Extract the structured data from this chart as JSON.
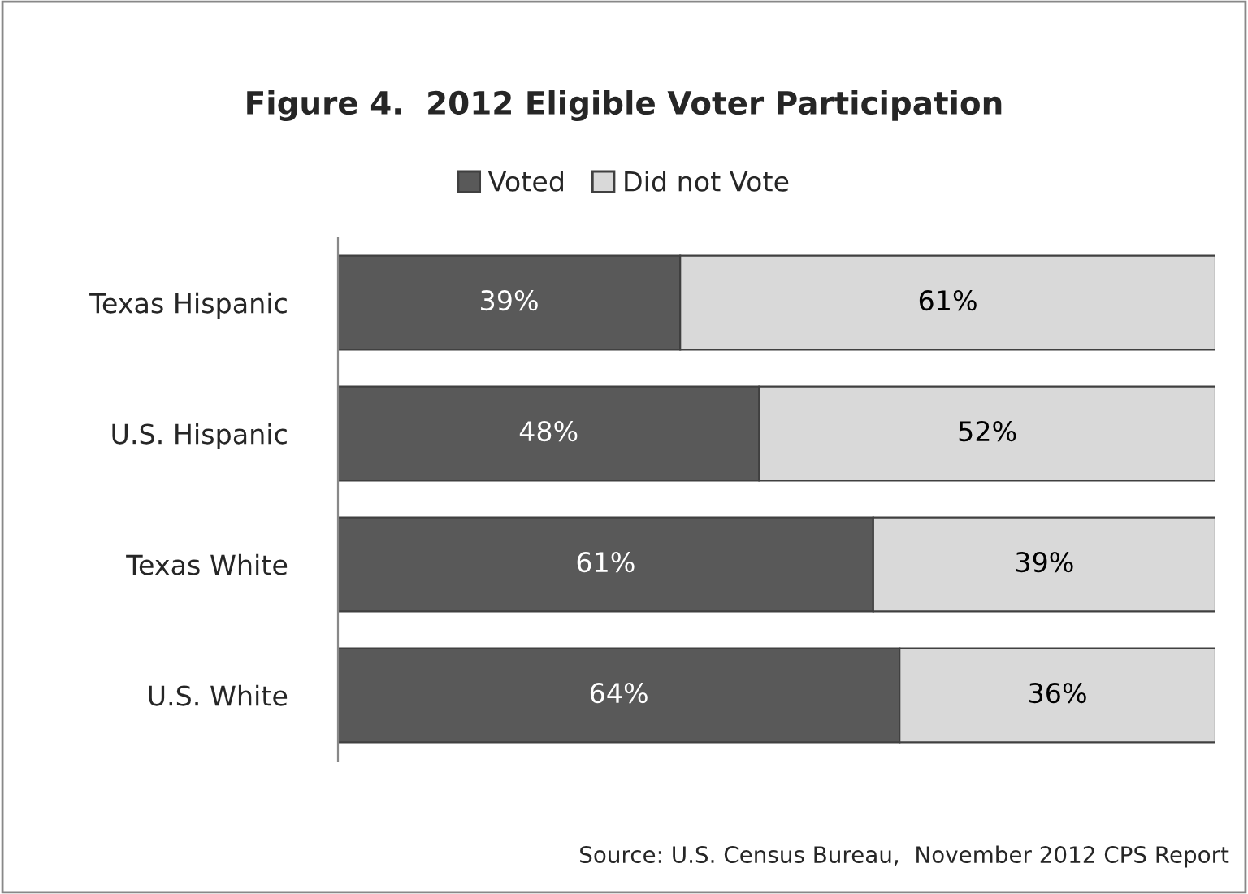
{
  "chart_data": {
    "type": "bar",
    "orientation": "horizontal",
    "stacked": true,
    "title": "Figure 4.  2012 Eligible Voter Participation",
    "categories": [
      "Texas Hispanic",
      "U.S. Hispanic",
      "Texas White",
      "U.S. White"
    ],
    "series": [
      {
        "name": "Voted",
        "color": "#595959",
        "values": [
          39,
          48,
          61,
          64
        ],
        "value_labels": [
          "39%",
          "48%",
          "61%",
          "64%"
        ]
      },
      {
        "name": "Did not Vote",
        "color": "#d9d9d9",
        "values": [
          61,
          52,
          39,
          36
        ],
        "value_labels": [
          "61%",
          "52%",
          "39%",
          "36%"
        ]
      }
    ],
    "xlim": [
      0,
      100
    ],
    "tick_labels": "y",
    "legend": "top",
    "grid": false,
    "annotations": [
      "Source: U.S. Census Bureau,  November 2012 CPS Report"
    ]
  }
}
